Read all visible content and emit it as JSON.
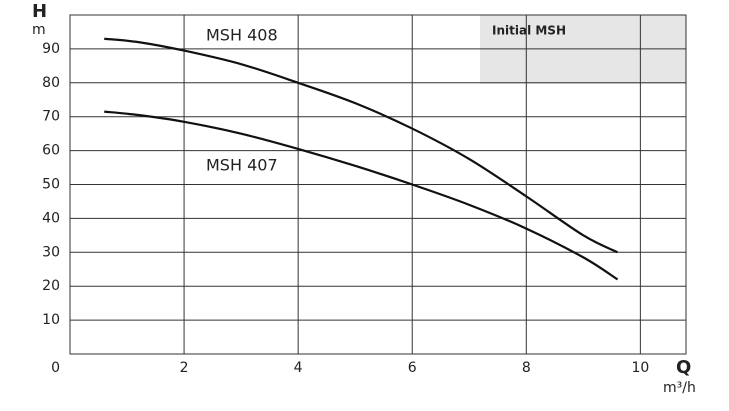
{
  "chart_data": {
    "type": "line",
    "y_label": "H",
    "y_unit": "m",
    "x_label": "Q",
    "x_unit": "m³/h",
    "annotation": "Initial MSH",
    "x": [
      0.6,
      1.2,
      2,
      3,
      4,
      5,
      6,
      7,
      8,
      9,
      9.6
    ],
    "series": [
      {
        "name": "MSH 408",
        "color": "#111111",
        "values": [
          93,
          92,
          89.5,
          85.5,
          80,
          74,
          66.5,
          57.5,
          46.5,
          35,
          30
        ]
      },
      {
        "name": "MSH 407",
        "color": "#111111",
        "values": [
          71.5,
          70.5,
          68.5,
          65,
          60.5,
          55.5,
          50,
          44,
          37,
          28.5,
          22
        ]
      }
    ],
    "xlim": [
      0,
      10.8
    ],
    "ylim": [
      0,
      100
    ],
    "xticks": [
      0,
      2,
      4,
      6,
      8,
      10
    ],
    "yticks": [
      0,
      10,
      20,
      30,
      40,
      50,
      60,
      70,
      80,
      90
    ],
    "grid": true
  }
}
